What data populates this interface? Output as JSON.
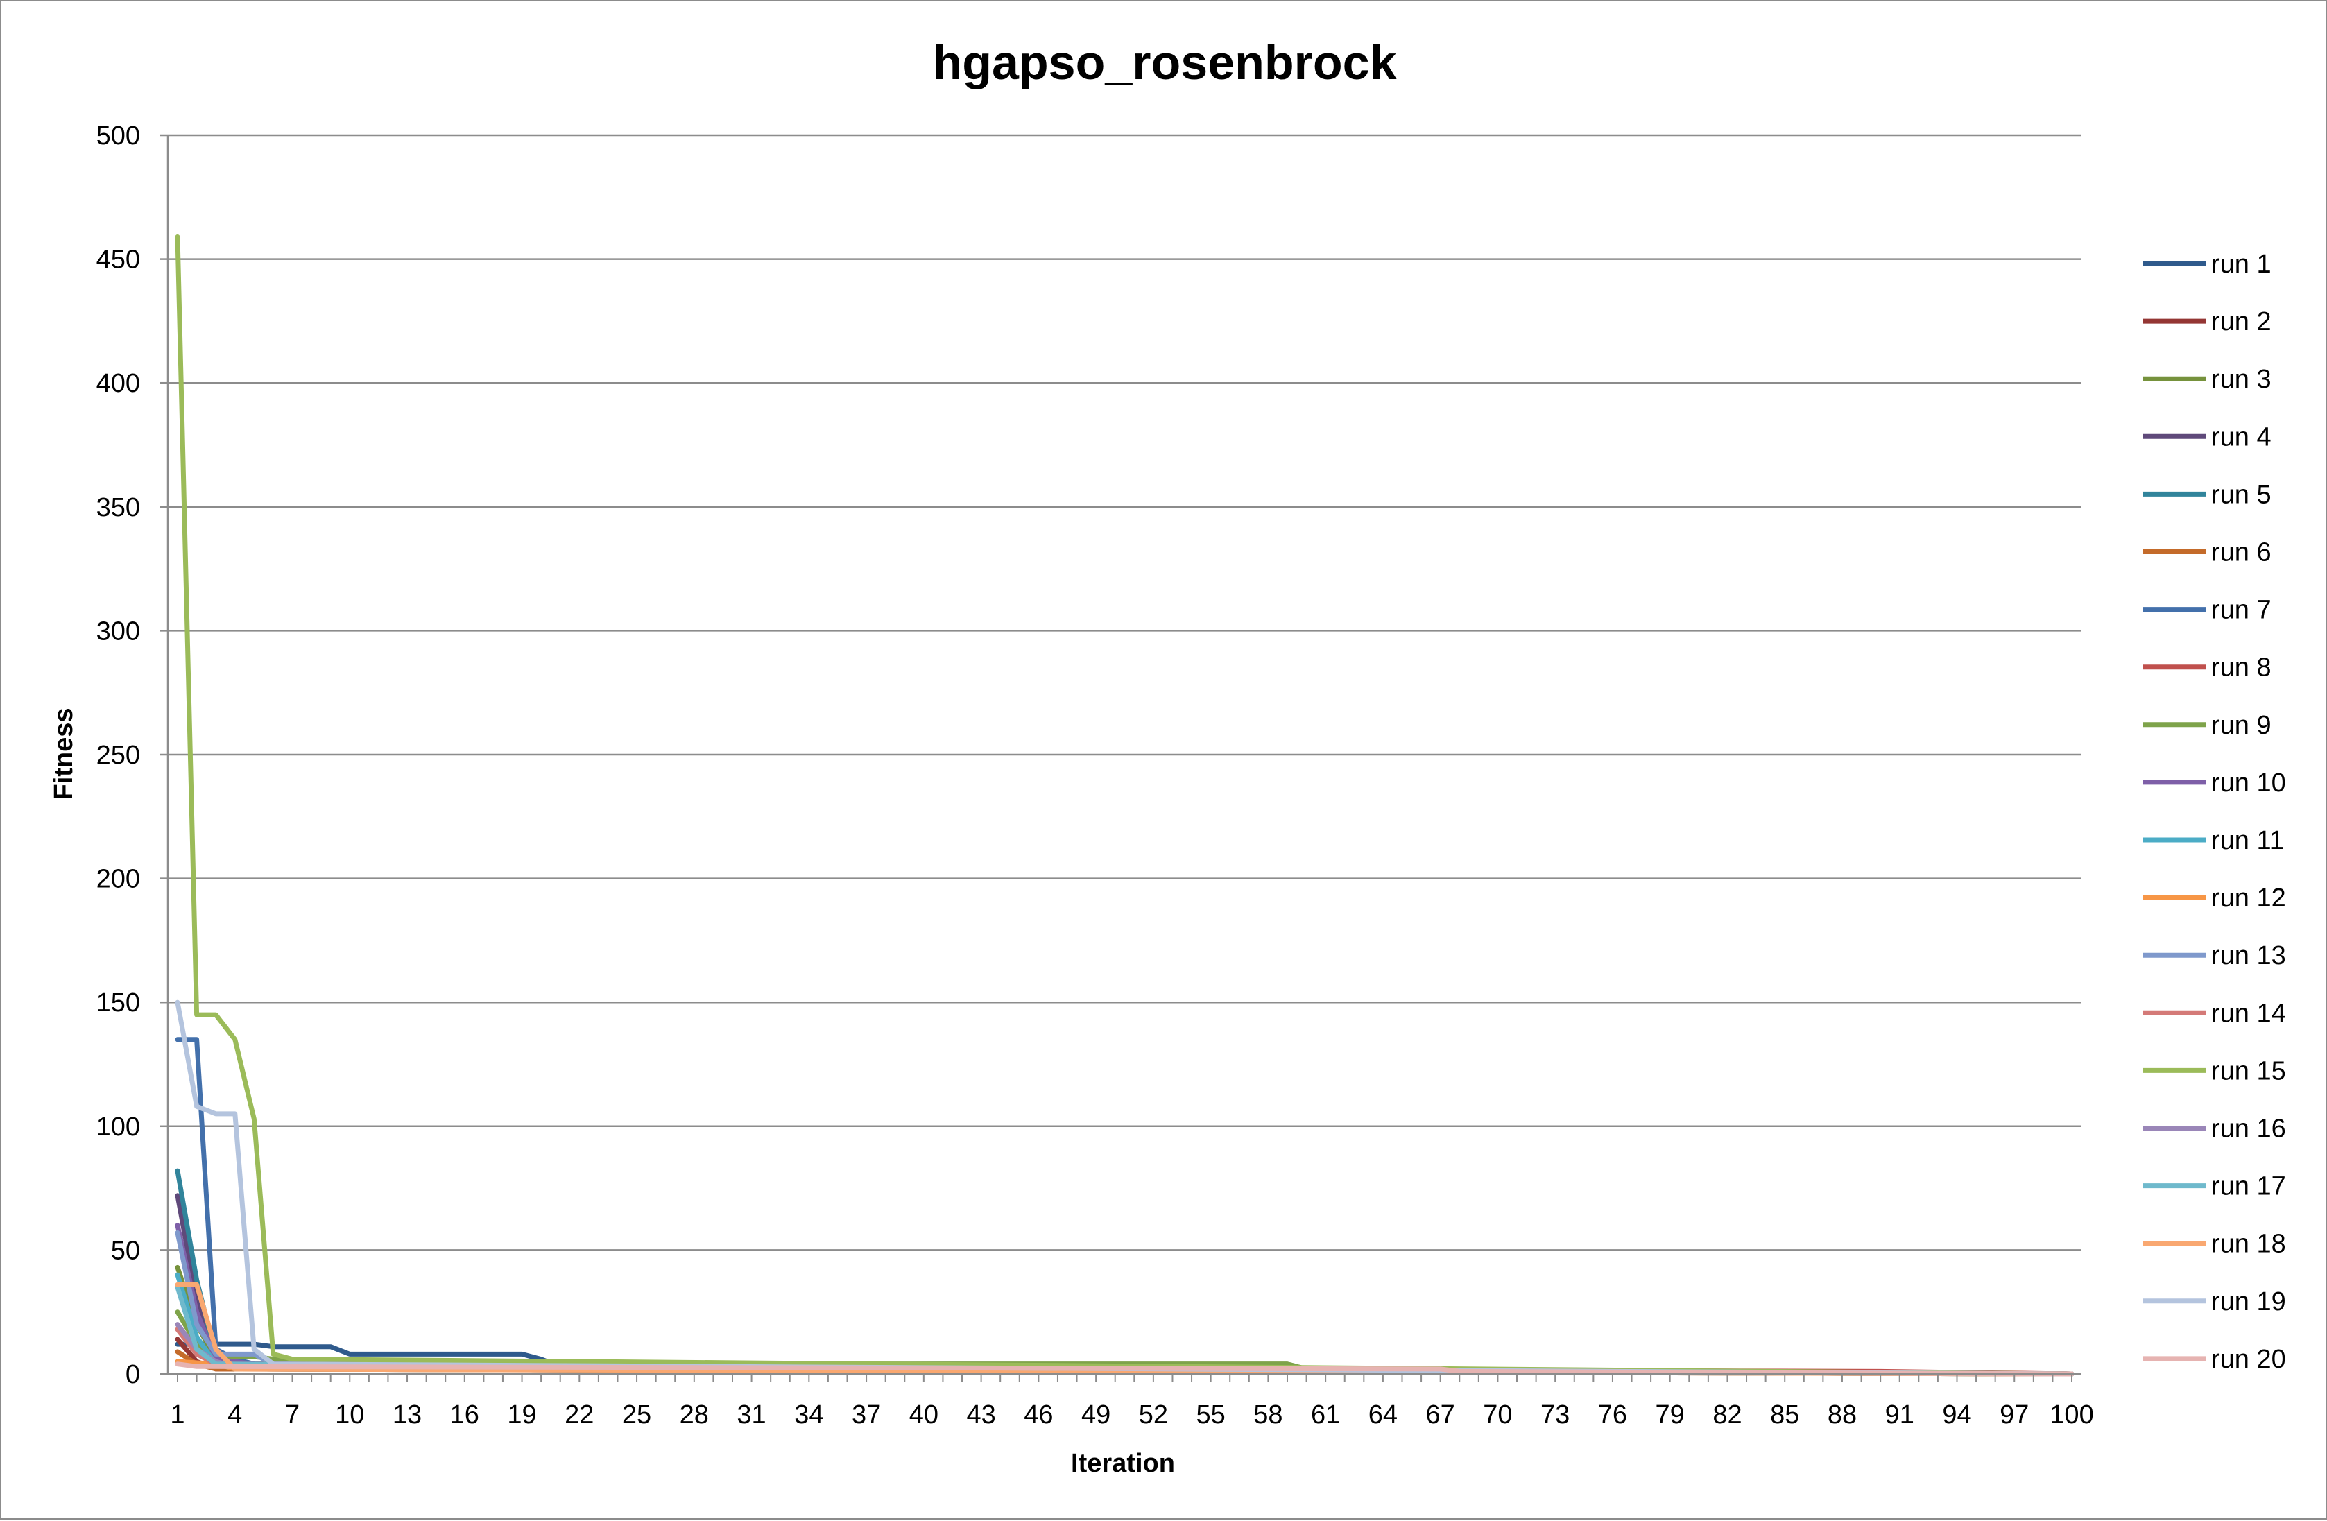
{
  "chart_data": {
    "type": "line",
    "title": "hgapso_rosenbrock",
    "xlabel": "Iteration",
    "ylabel": "Fitness",
    "ylim": [
      0,
      500
    ],
    "yticks": [
      0,
      50,
      100,
      150,
      200,
      250,
      300,
      350,
      400,
      450,
      500
    ],
    "xlim": [
      1,
      100
    ],
    "xticks": [
      1,
      4,
      7,
      10,
      13,
      16,
      19,
      22,
      25,
      28,
      31,
      34,
      37,
      40,
      43,
      46,
      49,
      52,
      55,
      58,
      61,
      64,
      67,
      70,
      73,
      76,
      79,
      82,
      85,
      88,
      91,
      94,
      97,
      100
    ],
    "grid": "horizontal",
    "legend_position": "right",
    "series": [
      {
        "name": "run 1",
        "color": "#2f5a8c",
        "points": [
          [
            1,
            12
          ],
          [
            2,
            12
          ],
          [
            3,
            12
          ],
          [
            5,
            12
          ],
          [
            6,
            11
          ],
          [
            9,
            11
          ],
          [
            10,
            8
          ],
          [
            19,
            8
          ],
          [
            20,
            6
          ],
          [
            21,
            3
          ],
          [
            100,
            0
          ]
        ]
      },
      {
        "name": "run 2",
        "color": "#943634",
        "points": [
          [
            1,
            14
          ],
          [
            2,
            5
          ],
          [
            3,
            2
          ],
          [
            4,
            2
          ],
          [
            100,
            0
          ]
        ]
      },
      {
        "name": "run 3",
        "color": "#76923c",
        "points": [
          [
            1,
            43
          ],
          [
            2,
            20
          ],
          [
            3,
            6
          ],
          [
            4,
            4
          ],
          [
            59,
            4
          ],
          [
            60,
            2
          ],
          [
            100,
            0
          ]
        ]
      },
      {
        "name": "run 4",
        "color": "#5f497a",
        "points": [
          [
            1,
            72
          ],
          [
            2,
            30
          ],
          [
            3,
            6
          ],
          [
            4,
            3
          ],
          [
            100,
            0
          ]
        ]
      },
      {
        "name": "run 5",
        "color": "#31849b",
        "points": [
          [
            1,
            82
          ],
          [
            2,
            38
          ],
          [
            3,
            7
          ],
          [
            4,
            3
          ],
          [
            6,
            2
          ],
          [
            100,
            0
          ]
        ]
      },
      {
        "name": "run 6",
        "color": "#c46b2a",
        "points": [
          [
            1,
            9
          ],
          [
            2,
            4
          ],
          [
            3,
            2
          ],
          [
            100,
            0
          ]
        ]
      },
      {
        "name": "run 7",
        "color": "#4370ab",
        "points": [
          [
            1,
            135
          ],
          [
            2,
            135
          ],
          [
            3,
            10
          ],
          [
            4,
            6
          ],
          [
            5,
            4
          ],
          [
            100,
            0
          ]
        ]
      },
      {
        "name": "run 8",
        "color": "#c0504d",
        "points": [
          [
            1,
            5
          ],
          [
            3,
            4
          ],
          [
            4,
            3
          ],
          [
            90,
            1
          ],
          [
            100,
            0
          ]
        ]
      },
      {
        "name": "run 9",
        "color": "#7ea34a",
        "points": [
          [
            1,
            25
          ],
          [
            2,
            12
          ],
          [
            3,
            7
          ],
          [
            5,
            7
          ],
          [
            8,
            4
          ],
          [
            59,
            4
          ],
          [
            60,
            2
          ],
          [
            100,
            0
          ]
        ]
      },
      {
        "name": "run 10",
        "color": "#7e5fa8",
        "points": [
          [
            1,
            60
          ],
          [
            2,
            25
          ],
          [
            3,
            6
          ],
          [
            5,
            4
          ],
          [
            14,
            4
          ],
          [
            15,
            2
          ],
          [
            100,
            0
          ]
        ]
      },
      {
        "name": "run 11",
        "color": "#4bacc6",
        "points": [
          [
            1,
            40
          ],
          [
            2,
            15
          ],
          [
            3,
            4
          ],
          [
            4,
            2
          ],
          [
            100,
            0
          ]
        ]
      },
      {
        "name": "run 12",
        "color": "#f79646",
        "points": [
          [
            1,
            5
          ],
          [
            3,
            4
          ],
          [
            4,
            2
          ],
          [
            100,
            0
          ]
        ]
      },
      {
        "name": "run 13",
        "color": "#7f99cc",
        "points": [
          [
            1,
            57
          ],
          [
            2,
            20
          ],
          [
            3,
            8
          ],
          [
            5,
            8
          ],
          [
            6,
            4
          ],
          [
            100,
            0
          ]
        ]
      },
      {
        "name": "run 14",
        "color": "#d47a78",
        "points": [
          [
            1,
            18
          ],
          [
            2,
            8
          ],
          [
            3,
            4
          ],
          [
            100,
            0
          ]
        ]
      },
      {
        "name": "run 15",
        "color": "#9bbb59",
        "points": [
          [
            1,
            459
          ],
          [
            2,
            145
          ],
          [
            3,
            145
          ],
          [
            4,
            135
          ],
          [
            5,
            103
          ],
          [
            6,
            8
          ],
          [
            7,
            6
          ],
          [
            100,
            0
          ]
        ]
      },
      {
        "name": "run 16",
        "color": "#9a86b8",
        "points": [
          [
            1,
            20
          ],
          [
            2,
            10
          ],
          [
            3,
            5
          ],
          [
            4,
            3
          ],
          [
            100,
            0
          ]
        ]
      },
      {
        "name": "run 17",
        "color": "#6fb9cc",
        "points": [
          [
            1,
            35
          ],
          [
            2,
            10
          ],
          [
            3,
            4
          ],
          [
            100,
            0
          ]
        ]
      },
      {
        "name": "run 18",
        "color": "#f9a871",
        "points": [
          [
            1,
            36
          ],
          [
            2,
            36
          ],
          [
            3,
            10
          ],
          [
            4,
            2
          ],
          [
            100,
            0
          ]
        ]
      },
      {
        "name": "run 19",
        "color": "#b4c4de",
        "points": [
          [
            1,
            150
          ],
          [
            2,
            108
          ],
          [
            3,
            105
          ],
          [
            4,
            105
          ],
          [
            5,
            10
          ],
          [
            6,
            4
          ],
          [
            100,
            0
          ]
        ]
      },
      {
        "name": "run 20",
        "color": "#e6b3b1",
        "points": [
          [
            1,
            4
          ],
          [
            2,
            3
          ],
          [
            67,
            2
          ],
          [
            68,
            1
          ],
          [
            100,
            0
          ]
        ]
      }
    ]
  }
}
